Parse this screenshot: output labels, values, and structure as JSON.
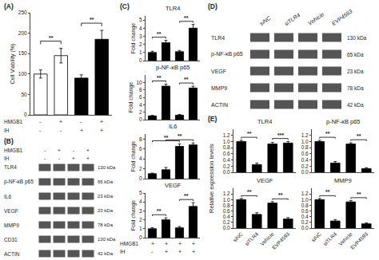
{
  "chart_data": [
    {
      "panel": "(A)",
      "type": "bar",
      "ylabel": "Cell Viability (%)",
      "categories": [
        null,
        null,
        null,
        null
      ],
      "values": [
        100,
        145,
        90,
        185
      ],
      "errors": [
        10,
        18,
        8,
        22
      ],
      "colors": [
        "white",
        "white",
        "black",
        "black"
      ],
      "ylim": [
        0,
        250
      ],
      "yticks": [
        0,
        50,
        100,
        150,
        200,
        250
      ],
      "grid": false,
      "significance": [
        {
          "from": 0,
          "to": 1,
          "label": "**"
        },
        {
          "from": 2,
          "to": 3,
          "label": "**"
        }
      ],
      "condition_rows": [
        {
          "label": "HMGB1",
          "cells": [
            "-",
            "+",
            "-",
            "+"
          ]
        },
        {
          "label": "IH",
          "cells": [
            "-",
            "-",
            "+",
            "+"
          ]
        }
      ]
    },
    {
      "panel": "(B)",
      "type": "blot",
      "condition_rows": [
        {
          "label": "HMGB1",
          "cells": [
            "-",
            "+",
            "-",
            "+"
          ]
        },
        {
          "label": "IH",
          "cells": [
            "-",
            "-",
            "+",
            "+"
          ]
        }
      ],
      "rows": [
        "TLR4",
        "p-NF-κB p65",
        "IL6",
        "VEGF",
        "MMP9",
        "CD31",
        "ACTIN"
      ],
      "kda": [
        "130 kDa",
        "65 kDa",
        "23 kDa",
        "23 kDa",
        "78 kDa",
        "130 kDa",
        "42 kDa"
      ]
    },
    {
      "panel": "(C)",
      "type": "group",
      "charts": [
        {
          "type": "bar",
          "title": "TLR4",
          "ylabel": "Fold change",
          "categories": [
            null,
            null,
            null,
            null
          ],
          "values": [
            1.0,
            2.2,
            1.1,
            4.0
          ],
          "errors": [
            0.15,
            0.3,
            0.15,
            0.45
          ],
          "color": "black",
          "ylim": [
            0,
            5.5
          ],
          "yticks": [
            0,
            1,
            2,
            3,
            4,
            5
          ],
          "grid": false,
          "significance": [
            {
              "from": 0,
              "to": 1,
              "label": "**"
            },
            {
              "from": 2,
              "to": 3,
              "label": "**"
            }
          ]
        },
        {
          "type": "bar",
          "title": "p-NF-κB p65",
          "ylabel": "Fold change",
          "categories": [
            null,
            null,
            null,
            null
          ],
          "values": [
            1.0,
            9.0,
            1.2,
            8.5
          ],
          "errors": [
            0.15,
            0.55,
            0.2,
            0.5
          ],
          "color": "black",
          "ylim": [
            0,
            12
          ],
          "yticks": [
            0,
            2,
            4,
            6,
            8,
            10
          ],
          "grid": false,
          "significance": [
            {
              "from": 0,
              "to": 1,
              "label": "**"
            },
            {
              "from": 2,
              "to": 3,
              "label": "**"
            }
          ]
        },
        {
          "type": "bar",
          "title": "IL6",
          "ylabel": "Fold change",
          "categories": [
            null,
            null,
            null,
            null
          ],
          "values": [
            1.0,
            1.8,
            6.5,
            6.8
          ],
          "errors": [
            0.12,
            0.45,
            0.5,
            0.4
          ],
          "color": "black",
          "ylim": [
            0,
            9
          ],
          "yticks": [
            0,
            2,
            4,
            6,
            8
          ],
          "grid": false,
          "significance": [
            {
              "from": 0,
              "to": 2,
              "label": "**"
            },
            {
              "from": 1,
              "to": 3,
              "label": "**"
            }
          ]
        },
        {
          "type": "bar",
          "title": "VEGF",
          "ylabel": "Fold change",
          "categories": [
            null,
            null,
            null,
            null
          ],
          "values": [
            1.0,
            2.0,
            1.1,
            3.5
          ],
          "errors": [
            0.12,
            0.22,
            0.15,
            0.42
          ],
          "color": "black",
          "ylim": [
            0,
            5.0
          ],
          "yticks": [
            0,
            1,
            2,
            3,
            4,
            5
          ],
          "grid": false,
          "significance": [
            {
              "from": 0,
              "to": 1,
              "label": "**"
            },
            {
              "from": 2,
              "to": 3,
              "label": "**"
            }
          ]
        }
      ],
      "condition_rows": [
        {
          "label": "HMGB1",
          "cells": [
            "+",
            "+",
            "+",
            "+"
          ]
        },
        {
          "label": "IH",
          "cells": [
            "-",
            "+",
            "+",
            "+"
          ]
        }
      ]
    },
    {
      "panel": "(D)",
      "type": "blot",
      "columns": [
        "siNC",
        "siTLR4",
        "Vehicle",
        "EVP4593"
      ],
      "rows": [
        "TLR4",
        "p-NF-κB p65",
        "VEGF",
        "MMP9",
        "ACTIN"
      ],
      "kda": [
        "130 kDa",
        "65 kDa",
        "23 kDa",
        "78 kDa",
        "42 kDa"
      ]
    },
    {
      "panel": "(E)",
      "type": "group",
      "ylabel": "Relative expression levels",
      "charts": [
        {
          "type": "bar",
          "title": "TLR4",
          "categories": [
            null,
            null,
            null,
            null
          ],
          "values": [
            1.0,
            0.25,
            0.92,
            0.95
          ],
          "errors": [
            0.04,
            0.05,
            0.05,
            0.05
          ],
          "color": "black",
          "ylim": [
            0,
            1.4
          ],
          "yticks": [
            {
              "value": 0,
              "label": "0.0"
            },
            0.2,
            0.4,
            0.6,
            0.8,
            {
              "value": 1,
              "label": "1.0"
            },
            1.2
          ],
          "grid": false,
          "significance": [
            {
              "from": 0,
              "to": 1,
              "label": "**"
            },
            {
              "from": 2,
              "to": 3,
              "label": "***"
            }
          ]
        },
        {
          "type": "bar",
          "title": "p-NF-κB p65",
          "categories": [
            null,
            null,
            null,
            null
          ],
          "values": [
            1.0,
            0.3,
            0.92,
            0.12
          ],
          "errors": [
            0.04,
            0.05,
            0.04,
            0.03
          ],
          "color": "black",
          "ylim": [
            0,
            1.4
          ],
          "yticks": [
            {
              "value": 0,
              "label": "0.0"
            },
            0.2,
            0.4,
            0.6,
            0.8,
            {
              "value": 1,
              "label": "1.0"
            },
            1.2
          ],
          "grid": false,
          "significance": [
            {
              "from": 0,
              "to": 1,
              "label": "**"
            },
            {
              "from": 2,
              "to": 3,
              "label": "**"
            }
          ]
        },
        {
          "type": "bar",
          "title": "VEGF",
          "categories": [
            "siNC",
            "siTLR4",
            "Vehicle",
            "EVP4593"
          ],
          "values": [
            1.0,
            0.48,
            0.88,
            0.32
          ],
          "errors": [
            0.04,
            0.06,
            0.05,
            0.05
          ],
          "color": "black",
          "ylim": [
            0,
            1.4
          ],
          "yticks": [
            {
              "value": 0,
              "label": "0.0"
            },
            0.2,
            0.4,
            0.6,
            0.8,
            {
              "value": 1,
              "label": "1.0"
            },
            1.2
          ],
          "grid": false,
          "significance": [
            {
              "from": 0,
              "to": 1,
              "label": "**"
            },
            {
              "from": 2,
              "to": 3,
              "label": "**"
            }
          ]
        },
        {
          "type": "bar",
          "title": "MMP9",
          "categories": [
            "siNC",
            "siTLR4",
            "Vehicle",
            "EVP4593"
          ],
          "values": [
            1.0,
            0.25,
            0.92,
            0.15
          ],
          "errors": [
            0.04,
            0.05,
            0.05,
            0.03
          ],
          "color": "black",
          "ylim": [
            0,
            1.4
          ],
          "yticks": [
            {
              "value": 0,
              "label": "0.0"
            },
            0.2,
            0.4,
            0.6,
            0.8,
            {
              "value": 1,
              "label": "1.0"
            },
            1.2
          ],
          "grid": false,
          "significance": [
            {
              "from": 0,
              "to": 1,
              "label": "**"
            },
            {
              "from": 2,
              "to": 3,
              "label": "**"
            }
          ]
        }
      ]
    }
  ]
}
